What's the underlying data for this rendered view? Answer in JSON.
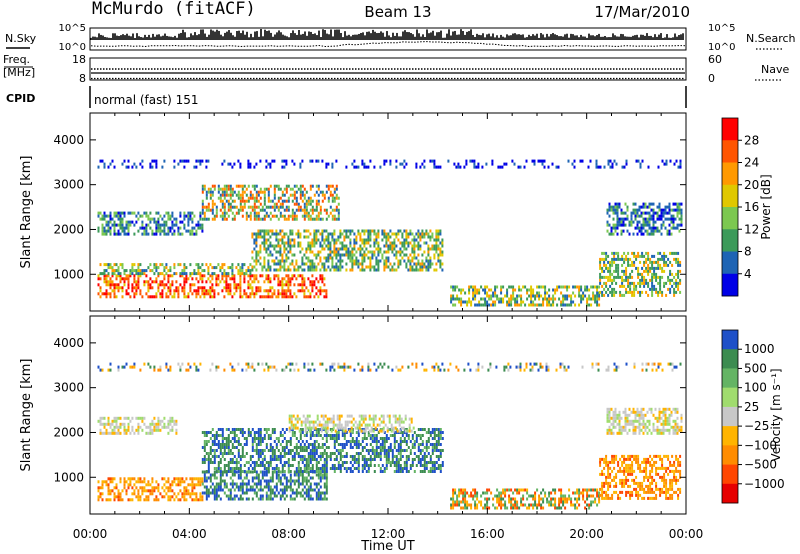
{
  "header": {
    "station": "McMurdo (fitACF)",
    "beam": "Beam 13",
    "date": "17/Mar/2010"
  },
  "top_panels": {
    "nsky_label": "N.Sky",
    "nsearch_label": "N.Search",
    "noise_left_ticks": [
      "10^5",
      "10^0"
    ],
    "noise_right_ticks": [
      "10^5",
      "10^0"
    ],
    "freq_label_line1": "Freq.",
    "freq_label_line2": "[MHz]",
    "freq_ticks": [
      "18",
      "8"
    ],
    "nave_label": "Nave",
    "nave_ticks": [
      "60",
      "0"
    ],
    "cpid_label": "CPID",
    "cpid_text": "normal (fast) 151"
  },
  "chart_data": [
    {
      "type": "heatmap",
      "name": "power",
      "ylabel": "Slant Range [km]",
      "y_ticks": [
        1000,
        2000,
        3000,
        4000
      ],
      "ylim": [
        180,
        4600
      ],
      "colorbar": {
        "label": "Power [dB]",
        "ticks": [
          "28",
          "24",
          "20",
          "16",
          "12",
          "8",
          "4"
        ],
        "colors": [
          "#ff0000",
          "#ff5500",
          "#ff9900",
          "#e0c800",
          "#7cc850",
          "#3c9a5a",
          "#1e64b4",
          "#0000e6"
        ]
      },
      "echo_regions": [
        {
          "t0": 0.3,
          "t1": 9.5,
          "r0": 500,
          "r1": 1000,
          "level": "high"
        },
        {
          "t0": 0.3,
          "t1": 6.5,
          "r0": 1000,
          "r1": 1250,
          "level": "mid"
        },
        {
          "t0": 6.5,
          "t1": 14.2,
          "r0": 1100,
          "r1": 2000,
          "level": "mid"
        },
        {
          "t0": 0.3,
          "t1": 4.5,
          "r0": 1900,
          "r1": 2400,
          "level": "low"
        },
        {
          "t0": 4.5,
          "t1": 10.0,
          "r0": 2200,
          "r1": 3000,
          "level": "mixed"
        },
        {
          "t0": 14.5,
          "t1": 20.5,
          "r0": 300,
          "r1": 750,
          "level": "mid"
        },
        {
          "t0": 20.5,
          "t1": 23.8,
          "r0": 500,
          "r1": 1500,
          "level": "mid"
        },
        {
          "t0": 20.8,
          "t1": 23.8,
          "r0": 1900,
          "r1": 2600,
          "level": "low"
        },
        {
          "t0": 0.3,
          "t1": 23.8,
          "r0": 3380,
          "r1": 3560,
          "level": "ground-scatter-low"
        }
      ]
    },
    {
      "type": "heatmap",
      "name": "velocity",
      "ylabel": "Slant Range [km]",
      "xlabel": "Time UT",
      "x_ticks": [
        "00:00",
        "04:00",
        "08:00",
        "12:00",
        "16:00",
        "20:00",
        "00:00"
      ],
      "y_ticks": [
        1000,
        2000,
        3000,
        4000
      ],
      "ylim": [
        180,
        4600
      ],
      "colorbar": {
        "label": "Velocity [m s⁻¹]",
        "ticks": [
          "1000",
          "500",
          "100",
          "25",
          "−25",
          "−100",
          "−500",
          "−1000"
        ],
        "colors": [
          "#1e50c8",
          "#3c8c50",
          "#64b464",
          "#a0dc6e",
          "#c8c8c8",
          "#ffb400",
          "#ff8c00",
          "#ff4600",
          "#e60000"
        ]
      },
      "echo_regions": [
        {
          "t0": 0.3,
          "t1": 4.5,
          "r0": 500,
          "r1": 1000,
          "level": "negative"
        },
        {
          "t0": 4.5,
          "t1": 9.5,
          "r0": 500,
          "r1": 1150,
          "level": "positive"
        },
        {
          "t0": 4.5,
          "t1": 14.2,
          "r0": 1100,
          "r1": 2100,
          "level": "positive"
        },
        {
          "t0": 0.3,
          "t1": 3.5,
          "r0": 1950,
          "r1": 2350,
          "level": "near-zero"
        },
        {
          "t0": 8.0,
          "t1": 13.0,
          "r0": 2000,
          "r1": 2400,
          "level": "near-zero"
        },
        {
          "t0": 14.5,
          "t1": 20.5,
          "r0": 300,
          "r1": 750,
          "level": "mixed"
        },
        {
          "t0": 20.5,
          "t1": 23.8,
          "r0": 500,
          "r1": 1500,
          "level": "negative"
        },
        {
          "t0": 20.8,
          "t1": 23.8,
          "r0": 2000,
          "r1": 2550,
          "level": "near-zero"
        },
        {
          "t0": 0.3,
          "t1": 23.8,
          "r0": 3380,
          "r1": 3560,
          "level": "sparse"
        }
      ]
    }
  ]
}
